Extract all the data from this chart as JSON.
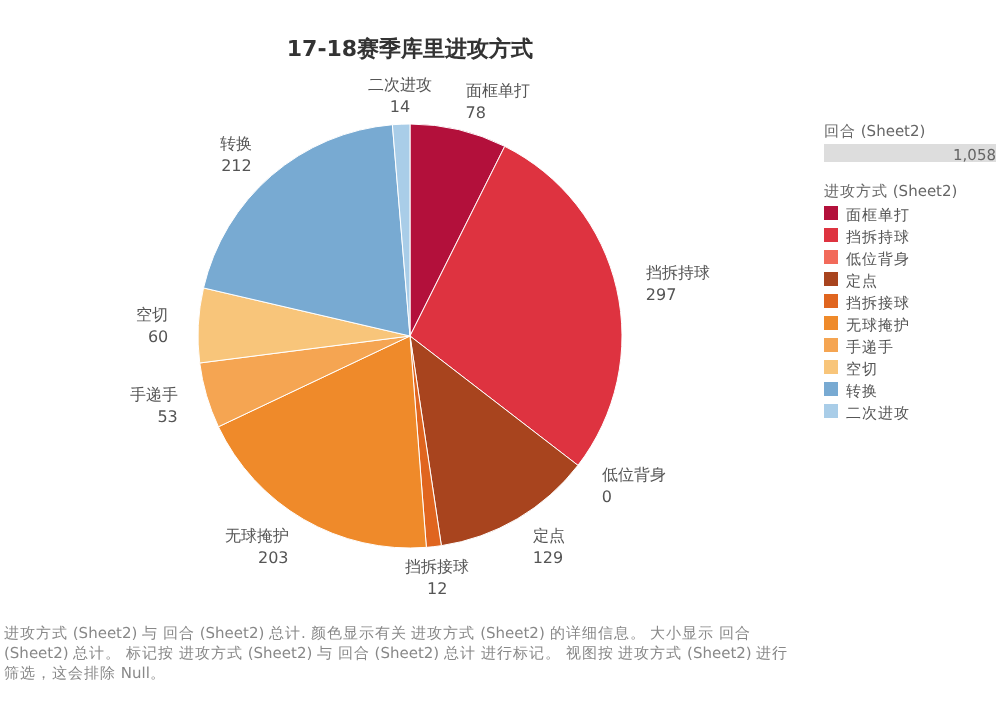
{
  "chart_data": {
    "type": "pie",
    "title": "17-18赛季库里进攻方式",
    "categories": [
      "面框单打",
      "挡拆持球",
      "低位背身",
      "定点",
      "挡拆接球",
      "无球掩护",
      "手递手",
      "空切",
      "转换",
      "二次进攻"
    ],
    "values": [
      78,
      297,
      0,
      129,
      12,
      203,
      53,
      60,
      212,
      14
    ],
    "colors": [
      "#b3103b",
      "#de3340",
      "#f26a5a",
      "#a8441e",
      "#e0651f",
      "#ef8a2a",
      "#f5a552",
      "#f8c57a",
      "#78aad2",
      "#a9cde8"
    ],
    "value_labels": [
      "78",
      "297",
      "0",
      "129",
      "12",
      "203",
      "53",
      "60",
      "212",
      "14"
    ],
    "legend": "right",
    "legend_title": "进攻方式 (Sheet2)",
    "annotations": [
      "回合 (Sheet2)",
      "1,058",
      "进攻方式 (Sheet2) 与 回合 (Sheet2) 总计. 颜色显示有关 进攻方式 (Sheet2) 的详细信息。 大小显示 回合 (Sheet2) 总计。 标记按 进攻方式 (Sheet2) 与 回合 (Sheet2) 总计 进行标记。 视图按 进攻方式 (Sheet2) 进行筛选，这会排除 Null。"
    ]
  }
}
